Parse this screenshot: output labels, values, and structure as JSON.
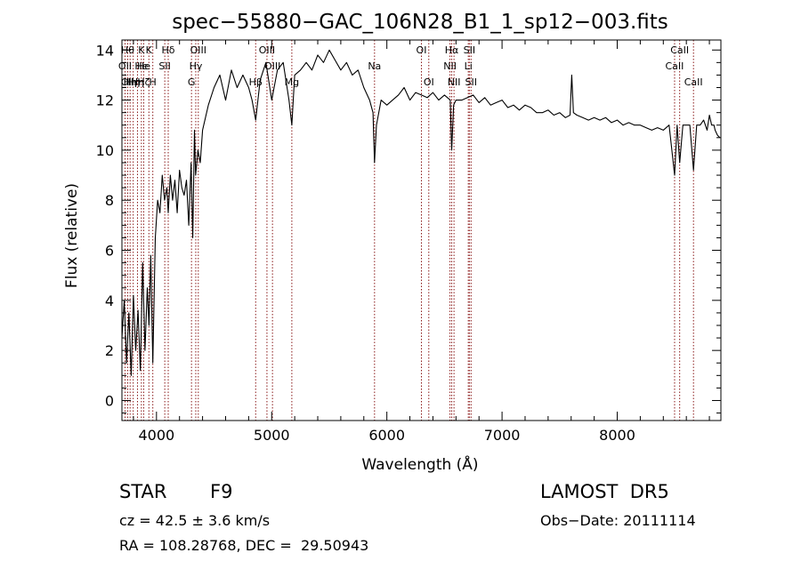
{
  "chart_data": {
    "type": "line",
    "title": "spec−55880−GAC_106N28_B1_1_sp12−003.fits",
    "xlabel": "Wavelength (Å)",
    "ylabel": "Flux (relative)",
    "xlim": [
      3700,
      8900
    ],
    "ylim": [
      -0.8,
      14.4
    ],
    "x_ticks": [
      4000,
      5000,
      6000,
      7000,
      8000
    ],
    "y_ticks": [
      0,
      2,
      4,
      6,
      8,
      10,
      12,
      14
    ],
    "grid": false,
    "series": [
      {
        "x": [
          3700,
          3720,
          3740,
          3760,
          3780,
          3800,
          3820,
          3840,
          3860,
          3880,
          3900,
          3920,
          3935,
          3950,
          3968,
          3990,
          4010,
          4030,
          4050,
          4070,
          4090,
          4102,
          4120,
          4140,
          4160,
          4180,
          4200,
          4220,
          4240,
          4260,
          4280,
          4300,
          4315,
          4330,
          4340,
          4360,
          4380,
          4400,
          4420,
          4450,
          4500,
          4550,
          4600,
          4650,
          4700,
          4750,
          4800,
          4830,
          4861,
          4900,
          4950,
          5000,
          5050,
          5100,
          5150,
          5175,
          5200,
          5250,
          5300,
          5350,
          5400,
          5450,
          5500,
          5550,
          5600,
          5650,
          5700,
          5750,
          5800,
          5850,
          5880,
          5893,
          5910,
          5950,
          6000,
          6050,
          6100,
          6150,
          6200,
          6250,
          6300,
          6350,
          6400,
          6450,
          6500,
          6550,
          6563,
          6580,
          6600,
          6650,
          6700,
          6750,
          6800,
          6850,
          6900,
          6950,
          7000,
          7050,
          7100,
          7150,
          7200,
          7250,
          7300,
          7350,
          7400,
          7450,
          7500,
          7550,
          7590,
          7605,
          7620,
          7650,
          7700,
          7750,
          7800,
          7850,
          7900,
          7950,
          8000,
          8050,
          8100,
          8150,
          8200,
          8250,
          8300,
          8350,
          8400,
          8450,
          8498,
          8520,
          8542,
          8570,
          8600,
          8630,
          8662,
          8690,
          8720,
          8750,
          8780,
          8800,
          8820,
          8840,
          8850,
          8870,
          8890
        ],
        "y": [
          2.5,
          4.0,
          1.5,
          3.5,
          1.0,
          4.2,
          2.0,
          3.6,
          1.2,
          5.5,
          2.0,
          4.5,
          3.0,
          5.8,
          1.5,
          6.5,
          8.0,
          7.5,
          9.0,
          8.0,
          8.5,
          7.5,
          9.0,
          8.0,
          8.8,
          7.5,
          9.2,
          8.5,
          8.2,
          8.8,
          7.0,
          9.5,
          6.5,
          10.8,
          9.0,
          10.0,
          9.5,
          10.8,
          11.2,
          11.8,
          12.5,
          13.0,
          12.0,
          13.2,
          12.5,
          13.0,
          12.5,
          12.0,
          11.2,
          12.8,
          13.5,
          12.0,
          13.2,
          13.5,
          12.0,
          11.0,
          13.0,
          13.2,
          13.5,
          13.2,
          13.8,
          13.5,
          14.0,
          13.6,
          13.2,
          13.5,
          13.0,
          13.2,
          12.5,
          12.0,
          11.5,
          9.5,
          11.0,
          12.0,
          11.8,
          12.0,
          12.2,
          12.5,
          12.0,
          12.3,
          12.2,
          12.1,
          12.3,
          12.0,
          12.2,
          12.0,
          10.0,
          11.8,
          12.0,
          12.0,
          12.1,
          12.2,
          11.9,
          12.1,
          11.8,
          11.9,
          12.0,
          11.7,
          11.8,
          11.6,
          11.8,
          11.7,
          11.5,
          11.5,
          11.6,
          11.4,
          11.5,
          11.3,
          11.4,
          13.0,
          11.5,
          11.4,
          11.3,
          11.2,
          11.3,
          11.2,
          11.3,
          11.1,
          11.2,
          11.0,
          11.1,
          11.0,
          11.0,
          10.9,
          10.8,
          10.9,
          10.8,
          11.0,
          9.0,
          11.0,
          9.5,
          11.0,
          11.0,
          11.0,
          9.2,
          11.0,
          11.0,
          11.2,
          10.8,
          11.4,
          11.0,
          11.0,
          10.8,
          10.6,
          10.5
        ]
      }
    ],
    "line_color": "#000000",
    "lines": [
      {
        "x": 3727,
        "labels": [
          "OII"
        ],
        "rows": [
          1
        ]
      },
      {
        "x": 3750,
        "labels": [
          "Hθ",
          "OII"
        ],
        "rows": [
          0,
          2
        ]
      },
      {
        "x": 3771,
        "labels": [
          "Hη"
        ],
        "rows": [
          2
        ]
      },
      {
        "x": 3798,
        "labels": [
          "Hη"
        ],
        "rows": [
          2
        ]
      },
      {
        "x": 3835,
        "labels": [
          "Hη"
        ],
        "rows": [
          2
        ]
      },
      {
        "x": 3869,
        "labels": [
          "He",
          "K"
        ],
        "rows": [
          1,
          0
        ]
      },
      {
        "x": 3889,
        "labels": [
          "He",
          "Hζ"
        ],
        "rows": [
          1,
          2
        ]
      },
      {
        "x": 3934,
        "labels": [
          "K"
        ],
        "rows": [
          0
        ]
      },
      {
        "x": 3968,
        "labels": [
          "H"
        ],
        "rows": [
          2
        ]
      },
      {
        "x": 4072,
        "labels": [
          "SII"
        ],
        "rows": [
          1
        ]
      },
      {
        "x": 4102,
        "labels": [
          "Hδ"
        ],
        "rows": [
          0
        ]
      },
      {
        "x": 4304,
        "labels": [
          "G"
        ],
        "rows": [
          2
        ]
      },
      {
        "x": 4341,
        "labels": [
          "Hγ"
        ],
        "rows": [
          1
        ]
      },
      {
        "x": 4363,
        "labels": [
          "OIII"
        ],
        "rows": [
          0
        ]
      },
      {
        "x": 4861,
        "labels": [
          "Hβ"
        ],
        "rows": [
          2
        ]
      },
      {
        "x": 4959,
        "labels": [
          "OIII"
        ],
        "rows": [
          0
        ]
      },
      {
        "x": 5007,
        "labels": [
          "OIII"
        ],
        "rows": [
          1
        ]
      },
      {
        "x": 5175,
        "labels": [
          "Mg"
        ],
        "rows": [
          2
        ]
      },
      {
        "x": 5893,
        "labels": [
          "Na"
        ],
        "rows": [
          1
        ]
      },
      {
        "x": 6300,
        "labels": [
          "OI"
        ],
        "rows": [
          0
        ]
      },
      {
        "x": 6364,
        "labels": [
          "OI"
        ],
        "rows": [
          2
        ]
      },
      {
        "x": 6548,
        "labels": [
          "NII"
        ],
        "rows": [
          1
        ]
      },
      {
        "x": 6563,
        "labels": [
          "Hα"
        ],
        "rows": [
          0
        ]
      },
      {
        "x": 6583,
        "labels": [
          "NII"
        ],
        "rows": [
          2
        ]
      },
      {
        "x": 6707,
        "labels": [
          "Li"
        ],
        "rows": [
          1
        ]
      },
      {
        "x": 6716,
        "labels": [
          "SII"
        ],
        "rows": [
          0
        ]
      },
      {
        "x": 6731,
        "labels": [
          "SII"
        ],
        "rows": [
          2
        ]
      },
      {
        "x": 8498,
        "labels": [
          "CaII"
        ],
        "rows": [
          1
        ]
      },
      {
        "x": 8542,
        "labels": [
          "CaII"
        ],
        "rows": [
          0
        ]
      },
      {
        "x": 8662,
        "labels": [
          "CaII"
        ],
        "rows": [
          2
        ]
      }
    ],
    "line_color_marker": "#8b1a1a"
  },
  "info": {
    "object_class": "STAR",
    "subclass": "F9",
    "survey": "LAMOST  DR5",
    "redshift": "cz = 42.5 ± 3.6 km/s",
    "obs_date": "Obs−Date: 20111114",
    "coords": "RA = 108.28768, DEC =  29.50943"
  }
}
